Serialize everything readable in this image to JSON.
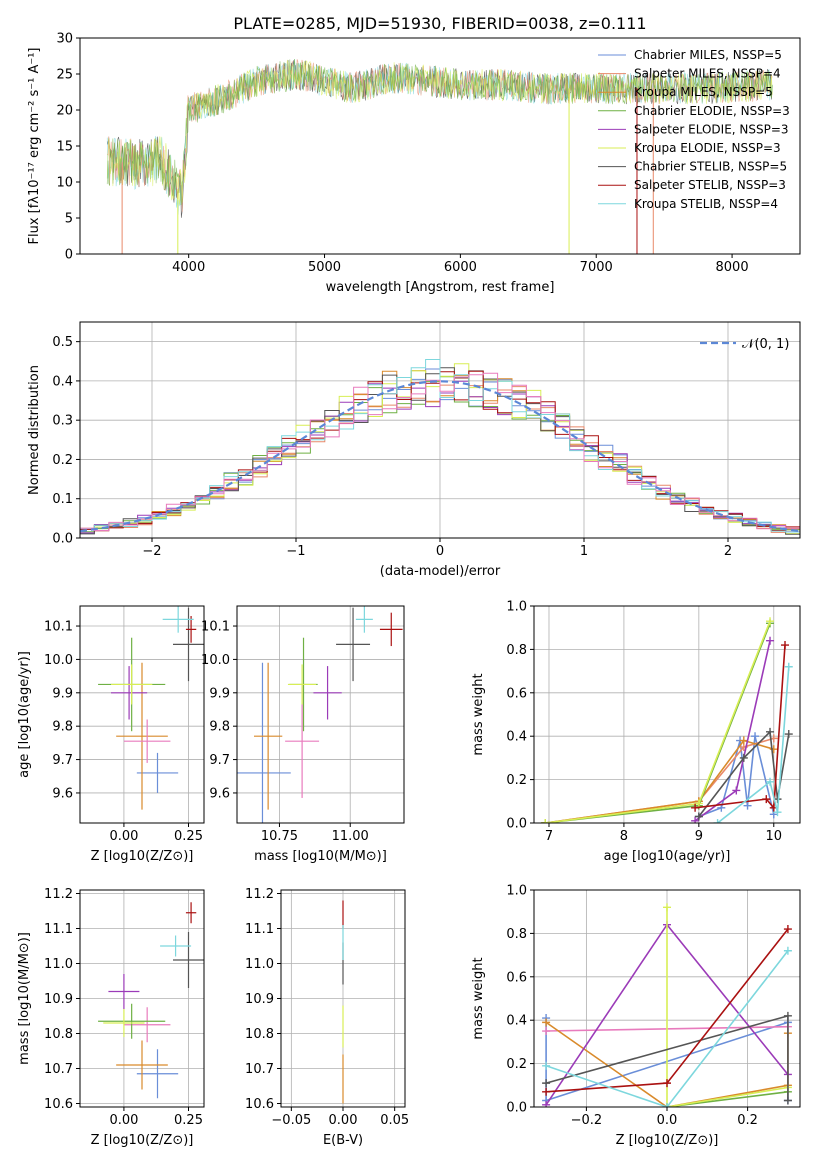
{
  "figure_title": "PLATE=0285, MJD=51930, FIBERID=0038, z=0.111",
  "colors": {
    "Chabrier MILES": "#6a8ed8",
    "Salpeter MILES": "#e8896a",
    "Kroupa MILES": "#d98a2b",
    "Chabrier ELODIE": "#6fb044",
    "Salpeter ELODIE": "#9b3bb8",
    "Kroupa ELODIE": "#d8ee55",
    "Chabrier STELIB": "#555555",
    "Salpeter STELIB": "#aa1111",
    "Kroupa STELIB": "#7dd7dd",
    "pink": "#e87bbd",
    "normal": "#5b87d6"
  },
  "chart_data": [
    {
      "id": "spectrum",
      "type": "line",
      "title": "PLATE=0285, MJD=51930, FIBERID=0038, z=0.111",
      "xlabel": "wavelength [Angstrom, rest frame]",
      "ylabel": "Flux [fλ10⁻¹⁷ erg cm⁻² s⁻¹ A⁻¹]",
      "xlim": [
        3200,
        8500
      ],
      "ylim": [
        0,
        30
      ],
      "xticks": [
        4000,
        5000,
        6000,
        7000,
        8000
      ],
      "yticks": [
        0,
        5,
        10,
        15,
        20,
        25,
        30
      ],
      "grid": false,
      "legend_position": "top-right",
      "legend": [
        "Chabrier MILES, NSSP=5",
        "Salpeter MILES, NSSP=4",
        "Kroupa MILES, NSSP=5",
        "Chabrier ELODIE, NSSP=3",
        "Salpeter ELODIE, NSSP=3",
        "Kroupa ELODIE, NSSP=3",
        "Chabrier STELIB, NSSP=5",
        "Salpeter STELIB, NSSP=3",
        "Kroupa STELIB, NSSP=4"
      ],
      "continuum_x": [
        3400,
        3600,
        3800,
        3950,
        4000,
        4150,
        4300,
        4500,
        4800,
        5000,
        5200,
        5500,
        5800,
        6000,
        6300,
        6600,
        7000,
        7400,
        7800,
        8300
      ],
      "continuum_y": [
        13,
        12.5,
        13,
        8,
        20,
        21,
        22,
        24,
        25,
        24,
        23,
        24.5,
        24,
        23.5,
        23.5,
        23,
        23,
        23,
        23,
        23.5
      ]
    },
    {
      "id": "residuals",
      "type": "line",
      "xlabel": "(data-model)/error",
      "ylabel": "Normed distribution",
      "xlim": [
        -2.5,
        2.5
      ],
      "ylim": [
        0,
        0.55
      ],
      "xticks": [
        -2,
        -1,
        0,
        1,
        2
      ],
      "yticks": [
        0.0,
        0.1,
        0.2,
        0.3,
        0.4,
        0.5
      ],
      "grid": true,
      "legend_position": "top-right",
      "legend": [
        "𝒩(0, 1)"
      ]
    },
    {
      "id": "age_vs_Z",
      "type": "scatter",
      "xlabel": "Z [log10(Z/Z⊙)]",
      "ylabel": "age  [log10(age/yr)]",
      "xlim": [
        -0.17,
        0.31
      ],
      "ylim": [
        9.51,
        10.16
      ],
      "xticks": [
        0.0,
        0.25
      ],
      "yticks": [
        9.6,
        9.7,
        9.8,
        9.9,
        10.0,
        10.1
      ],
      "grid": true,
      "points": [
        {
          "model": "Chabrier MILES",
          "x": 0.13,
          "y": 9.66,
          "xerr": 0.08,
          "yerr": 0.06
        },
        {
          "model": "Kroupa MILES",
          "x": 0.07,
          "y": 9.77,
          "xerr": 0.1,
          "yerr": 0.22
        },
        {
          "model": "pink",
          "x": 0.09,
          "y": 9.755,
          "xerr": 0.09,
          "yerr": 0.065
        },
        {
          "model": "Chabrier ELODIE",
          "x": 0.03,
          "y": 9.925,
          "xerr": 0.13,
          "yerr": 0.14
        },
        {
          "model": "Salpeter ELODIE",
          "x": 0.02,
          "y": 9.9,
          "xerr": 0.07,
          "yerr": 0.08
        },
        {
          "model": "Kroupa ELODIE",
          "x": 0.03,
          "y": 9.925,
          "xerr": 0.08,
          "yerr": 0.06
        },
        {
          "model": "Chabrier STELIB",
          "x": 0.25,
          "y": 10.045,
          "xerr": 0.06,
          "yerr": 0.11
        },
        {
          "model": "Salpeter STELIB",
          "x": 0.26,
          "y": 10.09,
          "xerr": 0.02,
          "yerr": 0.04
        },
        {
          "model": "Kroupa STELIB",
          "x": 0.21,
          "y": 10.12,
          "xerr": 0.06,
          "yerr": 0.04
        }
      ]
    },
    {
      "id": "age_vs_mass",
      "type": "scatter",
      "xlabel": "mass [log10(M/M⊙)]",
      "ylabel": "",
      "xlim": [
        10.6,
        11.19
      ],
      "ylim": [
        9.51,
        10.16
      ],
      "xticks": [
        10.75,
        11.0
      ],
      "yticks": [
        9.6,
        9.7,
        9.8,
        9.9,
        10.0,
        10.1
      ],
      "grid": true,
      "points": [
        {
          "model": "Chabrier MILES",
          "x": 10.69,
          "y": 9.66,
          "xerr": 0.1,
          "yerr": 0.33
        },
        {
          "model": "Kroupa MILES",
          "x": 10.71,
          "y": 9.77,
          "xerr": 0.05,
          "yerr": 0.22
        },
        {
          "model": "pink",
          "x": 10.83,
          "y": 9.755,
          "xerr": 0.06,
          "yerr": 0.17
        },
        {
          "model": "Chabrier ELODIE",
          "x": 10.835,
          "y": 9.925,
          "xerr": 0.05,
          "yerr": 0.14
        },
        {
          "model": "Salpeter ELODIE",
          "x": 10.92,
          "y": 9.9,
          "xerr": 0.05,
          "yerr": 0.08
        },
        {
          "model": "Kroupa ELODIE",
          "x": 10.83,
          "y": 9.925,
          "xerr": 0.05,
          "yerr": 0.06
        },
        {
          "model": "Chabrier STELIB",
          "x": 11.01,
          "y": 10.045,
          "xerr": 0.06,
          "yerr": 0.11
        },
        {
          "model": "Salpeter STELIB",
          "x": 11.145,
          "y": 10.09,
          "xerr": 0.04,
          "yerr": 0.05
        },
        {
          "model": "Kroupa STELIB",
          "x": 11.05,
          "y": 10.12,
          "xerr": 0.03,
          "yerr": 0.04
        }
      ]
    },
    {
      "id": "weight_vs_age",
      "type": "line",
      "xlabel": "age  [log10(age/yr)]",
      "ylabel": "mass weight",
      "xlim": [
        6.8,
        10.35
      ],
      "ylim": [
        0,
        1
      ],
      "xticks": [
        7,
        8,
        9,
        10
      ],
      "yticks": [
        0.0,
        0.2,
        0.4,
        0.6,
        0.8,
        1.0
      ],
      "grid": true,
      "series": [
        {
          "model": "Chabrier MILES",
          "x": [
            9.0,
            9.3,
            9.55,
            9.65,
            9.75,
            10.0
          ],
          "y": [
            0.03,
            0.07,
            0.38,
            0.08,
            0.4,
            0.04
          ]
        },
        {
          "model": "Salpeter MILES",
          "x": [
            6.95,
            9.0,
            9.6,
            10.0
          ],
          "y": [
            0.0,
            0.1,
            0.35,
            0.39
          ]
        },
        {
          "model": "Kroupa MILES",
          "x": [
            6.95,
            9.0,
            9.6,
            10.0
          ],
          "y": [
            0.0,
            0.1,
            0.38,
            0.34
          ]
        },
        {
          "model": "Chabrier ELODIE",
          "x": [
            6.95,
            9.0,
            9.95
          ],
          "y": [
            0.0,
            0.08,
            0.92
          ]
        },
        {
          "model": "Salpeter ELODIE",
          "x": [
            8.95,
            9.5,
            9.95
          ],
          "y": [
            0.01,
            0.15,
            0.84
          ]
        },
        {
          "model": "Kroupa ELODIE",
          "x": [
            6.95,
            9.0,
            9.95
          ],
          "y": [
            0.0,
            0.09,
            0.93
          ]
        },
        {
          "model": "Chabrier STELIB",
          "x": [
            9.0,
            9.6,
            9.95,
            10.05,
            10.2
          ],
          "y": [
            0.03,
            0.3,
            0.42,
            0.11,
            0.41
          ]
        },
        {
          "model": "Salpeter STELIB",
          "x": [
            8.95,
            9.9,
            10.0,
            10.15
          ],
          "y": [
            0.07,
            0.11,
            0.07,
            0.82
          ]
        },
        {
          "model": "Kroupa STELIB",
          "x": [
            9.25,
            9.95,
            10.05,
            10.2
          ],
          "y": [
            0.0,
            0.19,
            0.05,
            0.72
          ]
        }
      ]
    },
    {
      "id": "mass_vs_Z",
      "type": "scatter",
      "xlabel": "Z [log10(Z/Z⊙)]",
      "ylabel": "mass [log10(M/M⊙)]",
      "xlim": [
        -0.17,
        0.31
      ],
      "ylim": [
        10.59,
        11.21
      ],
      "xticks": [
        0.0,
        0.25
      ],
      "yticks": [
        10.6,
        10.7,
        10.8,
        10.9,
        11.0,
        11.1,
        11.2
      ],
      "grid": true,
      "points": [
        {
          "model": "Chabrier MILES",
          "x": 0.13,
          "y": 10.685,
          "xerr": 0.08,
          "yerr": 0.07
        },
        {
          "model": "Kroupa MILES",
          "x": 0.07,
          "y": 10.71,
          "xerr": 0.1,
          "yerr": 0.07
        },
        {
          "model": "pink",
          "x": 0.09,
          "y": 10.825,
          "xerr": 0.09,
          "yerr": 0.05
        },
        {
          "model": "Chabrier ELODIE",
          "x": 0.03,
          "y": 10.835,
          "xerr": 0.13,
          "yerr": 0.05
        },
        {
          "model": "Salpeter ELODIE",
          "x": 0.0,
          "y": 10.92,
          "xerr": 0.06,
          "yerr": 0.05
        },
        {
          "model": "Kroupa ELODIE",
          "x": 0.0,
          "y": 10.83,
          "xerr": 0.08,
          "yerr": 0.04
        },
        {
          "model": "Chabrier STELIB",
          "x": 0.25,
          "y": 11.01,
          "xerr": 0.06,
          "yerr": 0.08
        },
        {
          "model": "Salpeter STELIB",
          "x": 0.26,
          "y": 11.145,
          "xerr": 0.02,
          "yerr": 0.03
        },
        {
          "model": "Kroupa STELIB",
          "x": 0.2,
          "y": 11.05,
          "xerr": 0.06,
          "yerr": 0.03
        }
      ]
    },
    {
      "id": "mass_vs_ebv",
      "type": "scatter",
      "xlabel": "E(B-V)",
      "ylabel": "",
      "xlim": [
        -0.06,
        0.06
      ],
      "ylim": [
        10.59,
        11.21
      ],
      "xticks": [
        -0.05,
        0.0,
        0.05
      ],
      "yticks": [
        10.6,
        10.7,
        10.8,
        10.9,
        11.0,
        11.1,
        11.2
      ],
      "grid": true,
      "points": [
        {
          "model": "Kroupa MILES",
          "x": 0.0,
          "y": 10.67,
          "xerr": 0.0,
          "yerr": 0.07
        },
        {
          "model": "Kroupa ELODIE",
          "x": 0.0,
          "y": 10.82,
          "xerr": 0.0,
          "yerr": 0.06
        },
        {
          "model": "Chabrier STELIB",
          "x": 0.0,
          "y": 11.0,
          "xerr": 0.0,
          "yerr": 0.06
        },
        {
          "model": "Salpeter STELIB",
          "x": 0.0,
          "y": 11.14,
          "xerr": 0.0,
          "yerr": 0.04
        },
        {
          "model": "Kroupa STELIB",
          "x": 0.0,
          "y": 11.06,
          "xerr": 0.0,
          "yerr": 0.05
        }
      ]
    },
    {
      "id": "weight_vs_Z",
      "type": "line",
      "xlabel": "Z [log10(Z/Z⊙)]",
      "ylabel": "mass weight",
      "xlim": [
        -0.33,
        0.33
      ],
      "ylim": [
        0,
        1
      ],
      "xticks": [
        -0.2,
        0.0,
        0.2
      ],
      "yticks": [
        0.0,
        0.2,
        0.4,
        0.6,
        0.8,
        1.0
      ],
      "grid": true,
      "series": [
        {
          "model": "Chabrier MILES",
          "x": [
            -0.3,
            -0.3,
            0.3,
            0.3
          ],
          "y": [
            0.41,
            0.03,
            0.39,
            0.03
          ]
        },
        {
          "model": "pink",
          "x": [
            -0.3,
            0.3
          ],
          "y": [
            0.35,
            0.37
          ]
        },
        {
          "model": "Kroupa MILES",
          "x": [
            -0.3,
            0.0,
            0.3,
            0.3
          ],
          "y": [
            0.39,
            0.0,
            0.1,
            0.34
          ]
        },
        {
          "model": "Chabrier ELODIE",
          "x": [
            0.0,
            0.3
          ],
          "y": [
            0.0,
            0.07
          ]
        },
        {
          "model": "Salpeter ELODIE",
          "x": [
            -0.3,
            0.0,
            0.3
          ],
          "y": [
            0.01,
            0.84,
            0.15
          ]
        },
        {
          "model": "Kroupa ELODIE",
          "x": [
            0.0,
            0.0,
            0.3
          ],
          "y": [
            0.92,
            0.0,
            0.09
          ]
        },
        {
          "model": "Chabrier STELIB",
          "x": [
            -0.3,
            0.3,
            0.3
          ],
          "y": [
            0.11,
            0.42,
            0.03
          ]
        },
        {
          "model": "Salpeter STELIB",
          "x": [
            -0.3,
            0.0,
            0.3
          ],
          "y": [
            0.07,
            0.11,
            0.82
          ]
        },
        {
          "model": "Kroupa STELIB",
          "x": [
            -0.3,
            0.0,
            0.3
          ],
          "y": [
            0.19,
            0.0,
            0.72
          ]
        }
      ]
    }
  ]
}
